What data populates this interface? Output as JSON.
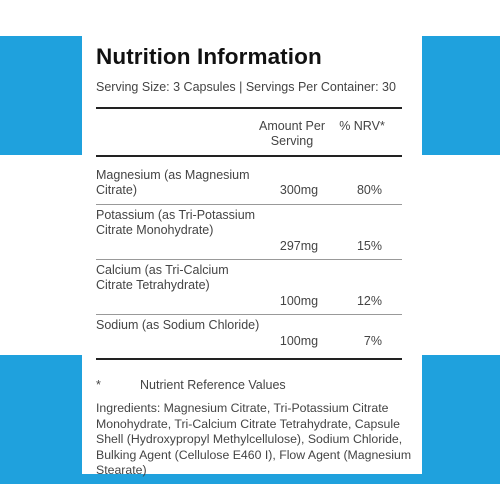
{
  "colors": {
    "band": "#1fa1dd",
    "panel": "#ffffff",
    "text": "#444444",
    "title": "#111111"
  },
  "title": "Nutrition Information",
  "serving": "Serving Size: 3 Capsules  |  Servings Per Container: 30",
  "table": {
    "headers": {
      "amount": "Amount Per Serving",
      "nrv": "% NRV*"
    },
    "rows": [
      {
        "name": "Magnesium (as Magnesium Citrate)",
        "amount": "300mg",
        "nrv": "80%"
      },
      {
        "name": "Potassium (as  Tri-Potassium Citrate Monohydrate)",
        "amount": "297mg",
        "nrv": "15%"
      },
      {
        "name": "Calcium (as Tri-Calcium Citrate Tetrahydrate)",
        "amount": "100mg",
        "nrv": "12%"
      },
      {
        "name": "Sodium (as Sodium Chloride)",
        "amount": "100mg",
        "nrv": "7%"
      }
    ]
  },
  "footnote": {
    "symbol": "*",
    "text": "Nutrient Reference Values"
  },
  "ingredients": "Ingredients: Magnesium Citrate, Tri-Potassium Citrate Monohydrate, Tri-Calcium Citrate Tetrahydrate, Capsule Shell (Hydroxypropyl Methylcellulose), Sodium Chloride, Bulking Agent (Cellulose E460 I), Flow Agent (Magnesium Stearate)"
}
